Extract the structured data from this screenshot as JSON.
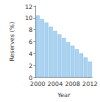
{
  "chart_data": {
    "type": "bar",
    "x_label": "Year",
    "y_label": "Reserves (%)",
    "categories": [
      "2000",
      null,
      null,
      null,
      "2004",
      null,
      null,
      null,
      "2008",
      null,
      null,
      null,
      "2012"
    ],
    "values": [
      10.4,
      9.8,
      9.2,
      8.5,
      7.8,
      7.2,
      6.6,
      5.9,
      5.3,
      4.7,
      4.0,
      3.3,
      2.6
    ],
    "color": "#a9d3f2",
    "ylim": [
      0,
      12
    ],
    "yticks": [
      0,
      2,
      4,
      6,
      8,
      10,
      12
    ],
    "grid": false
  }
}
